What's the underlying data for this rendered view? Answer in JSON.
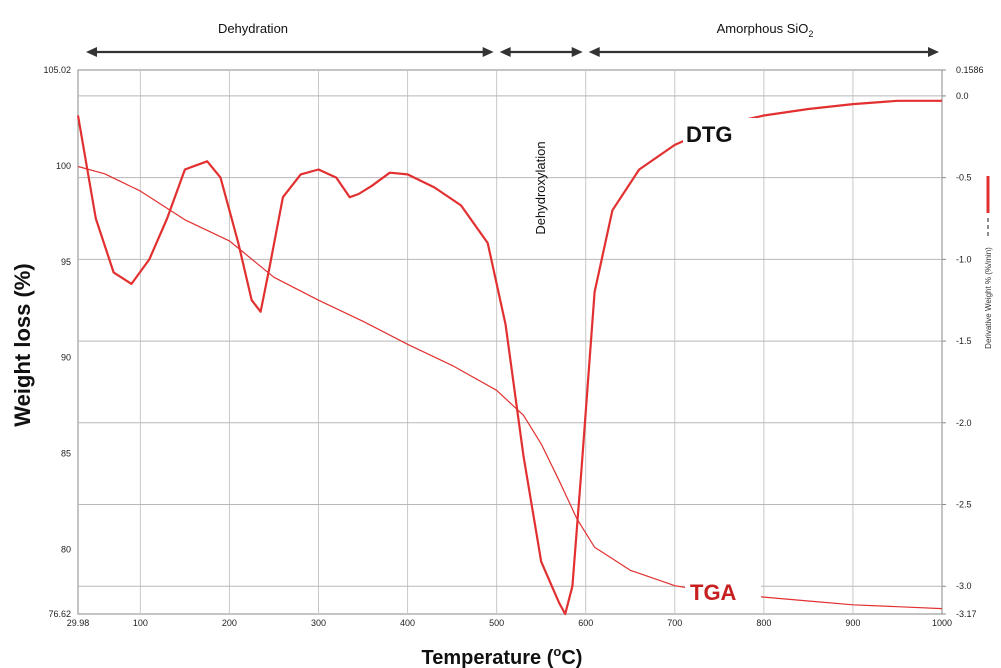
{
  "chart_data": {
    "type": "line",
    "xlabel": "Temperature (",
    "xlabel_sup": "o",
    "xlabel_end": "C)",
    "ylabel": "Weight loss (%)",
    "y2label": "Derivative Weight % (%/min)",
    "xlim": [
      29.98,
      1000
    ],
    "ylim": [
      76.62,
      105.02
    ],
    "y2lim": [
      -3.17,
      0.1586
    ],
    "x_ticks": [
      "29.98",
      "100",
      "200",
      "300",
      "400",
      "500",
      "600",
      "700",
      "800",
      "900",
      "1000"
    ],
    "x_tick_values": [
      29.98,
      100,
      200,
      300,
      400,
      500,
      600,
      700,
      800,
      900,
      1000
    ],
    "y_ticks": [
      "76.62",
      "80",
      "85",
      "90",
      "95",
      "100",
      "105.02"
    ],
    "y_tick_values": [
      76.62,
      80,
      85,
      90,
      95,
      100,
      105.02
    ],
    "y2_ticks": [
      "0.1586",
      "0.0",
      "-0.5",
      "-1.0",
      "-1.5",
      "-2.0",
      "-2.5",
      "-3.0",
      "-3.17"
    ],
    "y2_tick_values": [
      0.1586,
      0.0,
      -0.5,
      -1.0,
      -1.5,
      -2.0,
      -2.5,
      -3.0,
      -3.17
    ],
    "grid": true,
    "regions": [
      {
        "label": "Dehydration",
        "from": 29.98,
        "to": 500
      },
      {
        "label": "Dehydroxylation",
        "from": 500,
        "to": 600
      },
      {
        "label": "Amorphous SiO",
        "label_sub": "2",
        "from": 600,
        "to": 1000
      }
    ],
    "series": [
      {
        "name": "TGA",
        "axis": "left",
        "color": "#e23030",
        "x": [
          29.98,
          60,
          100,
          150,
          200,
          250,
          300,
          350,
          400,
          450,
          500,
          530,
          550,
          570,
          590,
          610,
          650,
          700,
          750,
          800,
          850,
          900,
          950,
          1000
        ],
        "y": [
          99.98,
          99.6,
          98.7,
          97.2,
          96.1,
          94.2,
          93.0,
          91.9,
          90.7,
          89.6,
          88.3,
          87.0,
          85.5,
          83.6,
          81.6,
          80.1,
          78.9,
          78.1,
          77.7,
          77.5,
          77.3,
          77.1,
          77.0,
          76.9
        ]
      },
      {
        "name": "DTG",
        "axis": "right",
        "color": "#e23030",
        "x": [
          29.98,
          50,
          70,
          90,
          110,
          130,
          150,
          160,
          175,
          190,
          210,
          225,
          235,
          245,
          260,
          280,
          300,
          320,
          335,
          345,
          360,
          380,
          400,
          430,
          460,
          490,
          510,
          530,
          550,
          570,
          577,
          585,
          595,
          610,
          630,
          660,
          700,
          750,
          800,
          850,
          900,
          950,
          1000
        ],
        "y": [
          -0.12,
          -0.75,
          -1.08,
          -1.15,
          -1.0,
          -0.75,
          -0.45,
          -0.43,
          -0.4,
          -0.5,
          -0.9,
          -1.25,
          -1.32,
          -1.05,
          -0.62,
          -0.48,
          -0.45,
          -0.5,
          -0.62,
          -0.6,
          -0.55,
          -0.47,
          -0.48,
          -0.56,
          -0.67,
          -0.9,
          -1.4,
          -2.2,
          -2.85,
          -3.1,
          -3.17,
          -3.0,
          -2.3,
          -1.2,
          -0.7,
          -0.45,
          -0.3,
          -0.18,
          -0.12,
          -0.08,
          -0.05,
          -0.03,
          -0.03
        ]
      }
    ]
  }
}
